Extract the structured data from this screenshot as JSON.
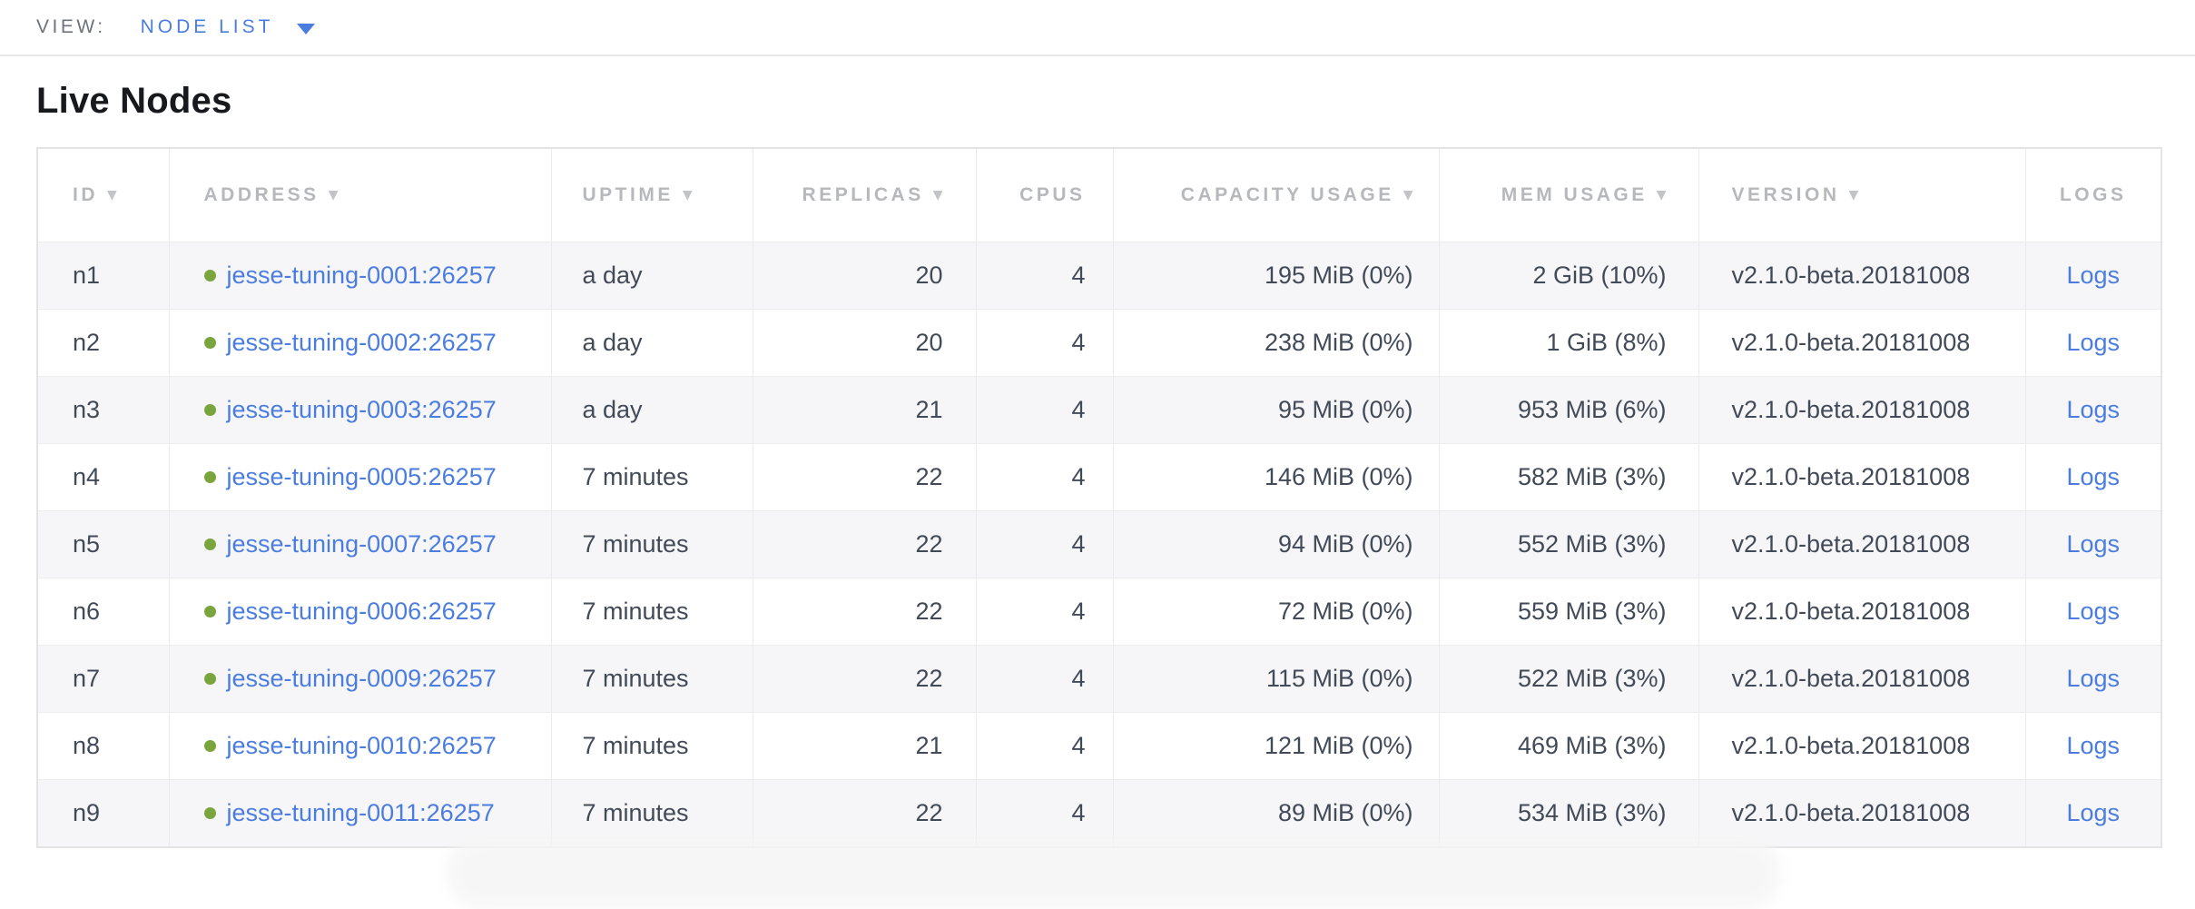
{
  "view_bar": {
    "label": "VIEW:",
    "selected_view": "NODE LIST"
  },
  "page": {
    "title": "Live Nodes"
  },
  "icons": {
    "sort_desc_glyph": "▼",
    "caret_down": "caret-down-icon",
    "node_status": "live-status-dot-icon"
  },
  "colors": {
    "link_blue": "#4b7de0",
    "live_green": "#7aa43c",
    "header_gray": "#b6b8bb",
    "text_dark": "#424a58",
    "row_stripe": "#f6f6f8"
  },
  "table": {
    "columns": [
      {
        "key": "id",
        "label": "ID",
        "sortable": true
      },
      {
        "key": "address",
        "label": "ADDRESS",
        "sortable": true
      },
      {
        "key": "uptime",
        "label": "UPTIME",
        "sortable": true
      },
      {
        "key": "replicas",
        "label": "REPLICAS",
        "sortable": true
      },
      {
        "key": "cpus",
        "label": "CPUS",
        "sortable": false
      },
      {
        "key": "capacity",
        "label": "CAPACITY USAGE",
        "sortable": true
      },
      {
        "key": "mem",
        "label": "MEM USAGE",
        "sortable": true
      },
      {
        "key": "version",
        "label": "VERSION",
        "sortable": true
      },
      {
        "key": "logs",
        "label": "LOGS",
        "sortable": false
      }
    ],
    "rows": [
      {
        "id": "n1",
        "address": "jesse-tuning-0001:26257",
        "status": "live",
        "uptime": "a day",
        "replicas": "20",
        "cpus": "4",
        "capacity": "195 MiB (0%)",
        "mem": "2 GiB (10%)",
        "version": "v2.1.0-beta.20181008",
        "logs": "Logs"
      },
      {
        "id": "n2",
        "address": "jesse-tuning-0002:26257",
        "status": "live",
        "uptime": "a day",
        "replicas": "20",
        "cpus": "4",
        "capacity": "238 MiB (0%)",
        "mem": "1 GiB (8%)",
        "version": "v2.1.0-beta.20181008",
        "logs": "Logs"
      },
      {
        "id": "n3",
        "address": "jesse-tuning-0003:26257",
        "status": "live",
        "uptime": "a day",
        "replicas": "21",
        "cpus": "4",
        "capacity": "95 MiB (0%)",
        "mem": "953 MiB (6%)",
        "version": "v2.1.0-beta.20181008",
        "logs": "Logs"
      },
      {
        "id": "n4",
        "address": "jesse-tuning-0005:26257",
        "status": "live",
        "uptime": "7 minutes",
        "replicas": "22",
        "cpus": "4",
        "capacity": "146 MiB (0%)",
        "mem": "582 MiB (3%)",
        "version": "v2.1.0-beta.20181008",
        "logs": "Logs"
      },
      {
        "id": "n5",
        "address": "jesse-tuning-0007:26257",
        "status": "live",
        "uptime": "7 minutes",
        "replicas": "22",
        "cpus": "4",
        "capacity": "94 MiB (0%)",
        "mem": "552 MiB (3%)",
        "version": "v2.1.0-beta.20181008",
        "logs": "Logs"
      },
      {
        "id": "n6",
        "address": "jesse-tuning-0006:26257",
        "status": "live",
        "uptime": "7 minutes",
        "replicas": "22",
        "cpus": "4",
        "capacity": "72 MiB (0%)",
        "mem": "559 MiB (3%)",
        "version": "v2.1.0-beta.20181008",
        "logs": "Logs"
      },
      {
        "id": "n7",
        "address": "jesse-tuning-0009:26257",
        "status": "live",
        "uptime": "7 minutes",
        "replicas": "22",
        "cpus": "4",
        "capacity": "115 MiB (0%)",
        "mem": "522 MiB (3%)",
        "version": "v2.1.0-beta.20181008",
        "logs": "Logs"
      },
      {
        "id": "n8",
        "address": "jesse-tuning-0010:26257",
        "status": "live",
        "uptime": "7 minutes",
        "replicas": "21",
        "cpus": "4",
        "capacity": "121 MiB (0%)",
        "mem": "469 MiB (3%)",
        "version": "v2.1.0-beta.20181008",
        "logs": "Logs"
      },
      {
        "id": "n9",
        "address": "jesse-tuning-0011:26257",
        "status": "live",
        "uptime": "7 minutes",
        "replicas": "22",
        "cpus": "4",
        "capacity": "89 MiB (0%)",
        "mem": "534 MiB (3%)",
        "version": "v2.1.0-beta.20181008",
        "logs": "Logs"
      }
    ]
  }
}
